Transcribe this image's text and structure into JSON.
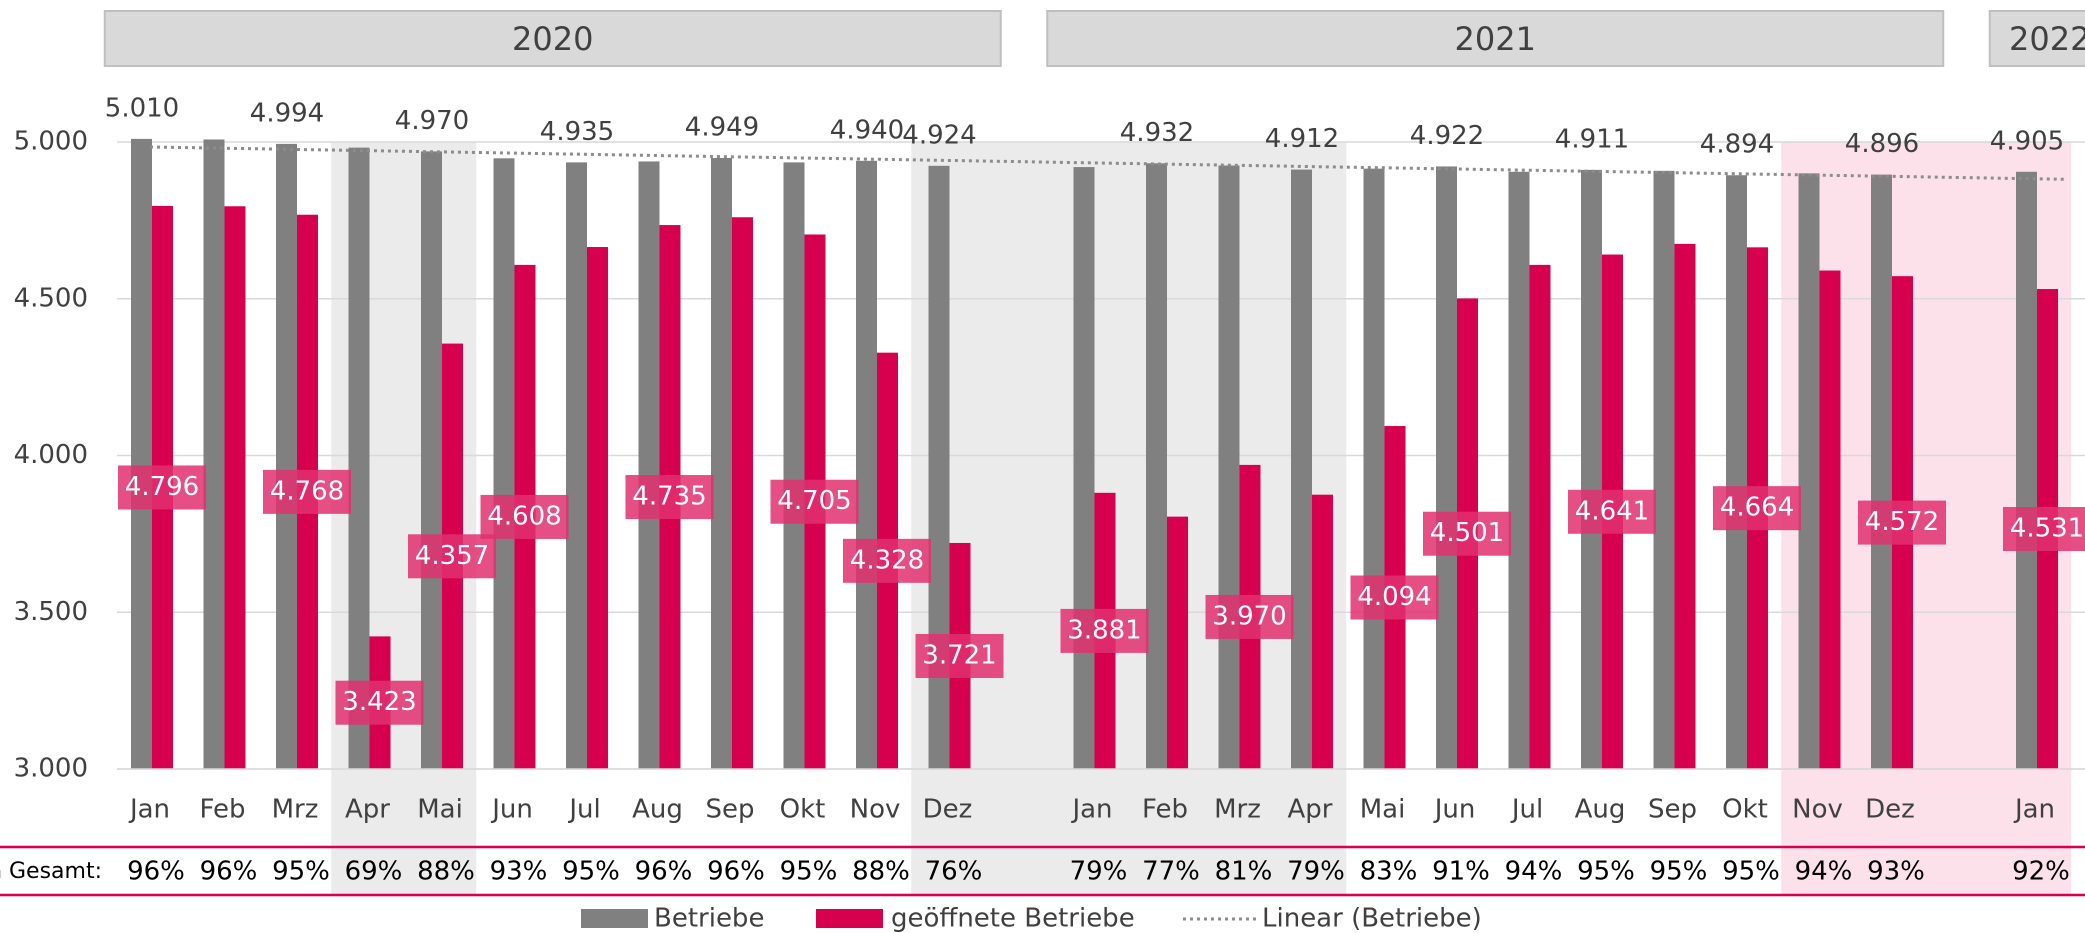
{
  "chart_data": {
    "type": "bar",
    "year_groups": [
      "2020",
      "2021",
      "2022"
    ],
    "categories": [
      "Jan",
      "Feb",
      "Mrz",
      "Apr",
      "Mai",
      "Jun",
      "Jul",
      "Aug",
      "Sep",
      "Okt",
      "Nov",
      "Dez",
      null,
      "Jan",
      "Feb",
      "Mrz",
      "Apr",
      "Mai",
      "Jun",
      "Jul",
      "Aug",
      "Sep",
      "Okt",
      "Nov",
      "Dez",
      null,
      "Jan"
    ],
    "series": [
      {
        "name": "Betriebe",
        "color": "#808080",
        "values": [
          5010,
          5008,
          4994,
          4982,
          4970,
          4948,
          4935,
          4938,
          4949,
          4935,
          4940,
          4924,
          null,
          4920,
          4932,
          4925,
          4912,
          4915,
          4922,
          4905,
          4911,
          4908,
          4894,
          4900,
          4896,
          null,
          4905
        ],
        "value_labels": [
          "5.010",
          null,
          "4.994",
          null,
          "4.970",
          null,
          "4.935",
          null,
          "4.949",
          null,
          "4.940",
          "4.924",
          null,
          null,
          "4.932",
          null,
          "4.912",
          null,
          "4.922",
          null,
          "4.911",
          null,
          "4.894",
          null,
          "4.896",
          null,
          "4.905"
        ]
      },
      {
        "name": "geöffnete Betriebe",
        "color": "#d6004f",
        "values": [
          4796,
          4795,
          4768,
          3423,
          4357,
          4608,
          4665,
          4735,
          4760,
          4705,
          4328,
          3721,
          null,
          3881,
          3805,
          3970,
          3875,
          4094,
          4501,
          4608,
          4641,
          4675,
          4664,
          4590,
          4572,
          null,
          4531
        ],
        "value_labels": [
          "4.796",
          null,
          "4.768",
          "3.423",
          "4.357",
          "4.608",
          null,
          "4.735",
          null,
          "4.705",
          "4.328",
          "3.721",
          null,
          "3.881",
          null,
          "3.970",
          null,
          "4.094",
          "4.501",
          null,
          "4.641",
          null,
          "4.664",
          null,
          "4.572",
          null,
          "4.531"
        ]
      }
    ],
    "trendline": {
      "name": "Linear (Betriebe)",
      "color": "#8c8c8c"
    },
    "shares_label": "n Gesamt:",
    "shares": [
      "96%",
      "96%",
      "95%",
      "69%",
      "88%",
      "93%",
      "95%",
      "96%",
      "96%",
      "95%",
      "88%",
      "76%",
      null,
      "79%",
      "77%",
      "81%",
      "79%",
      "83%",
      "91%",
      "94%",
      "95%",
      "95%",
      "95%",
      "94%",
      "93%",
      null,
      "92%"
    ],
    "ylim": [
      3000,
      5000
    ],
    "yticks": [
      {
        "value": 3000,
        "label": "3.000"
      },
      {
        "value": 3500,
        "label": "3.500"
      },
      {
        "value": 4000,
        "label": "4.000"
      },
      {
        "value": 4500,
        "label": "4.500"
      },
      {
        "value": 5000,
        "label": "5.000"
      }
    ],
    "grid": true
  }
}
